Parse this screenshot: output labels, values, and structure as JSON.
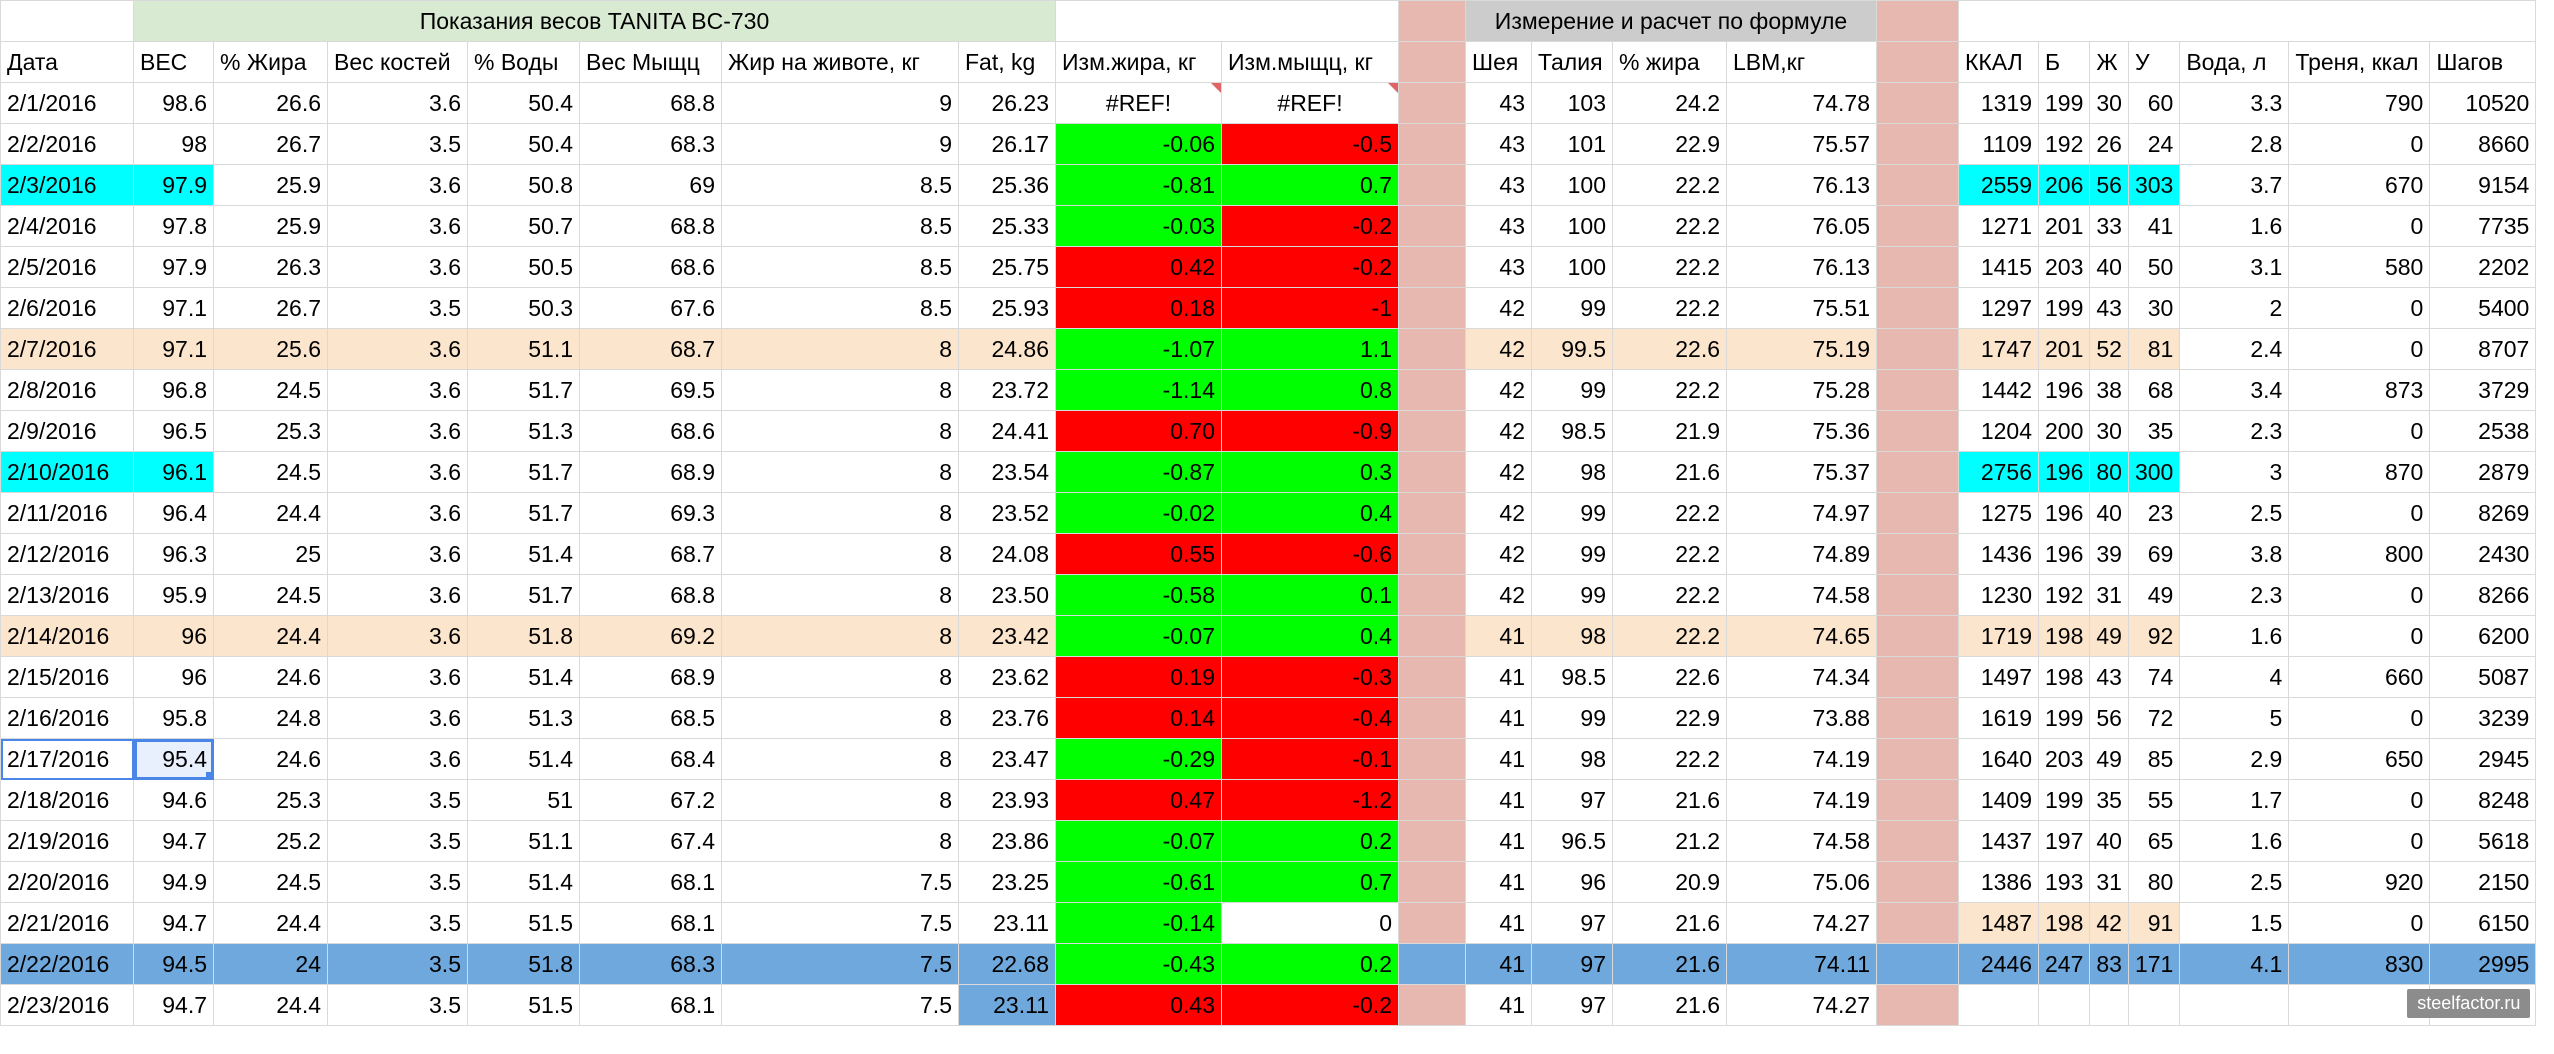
{
  "colors": {
    "header_green": "#d9ead3",
    "header_gray": "#cccccc",
    "separator_pink": "#e6b8af",
    "cyan": "#00ffff",
    "peach": "#fce5cd",
    "green": "#00ff00",
    "red": "#ff0000",
    "blue_row": "#6fa8dc",
    "white": "#ffffff"
  },
  "banner": {
    "tanita": "Показания весов TANITA BC-730",
    "formula": "Измерение и расчет по формуле"
  },
  "headers": [
    "Дата",
    "ВЕС",
    "% Жира",
    "Вес костей",
    "% Воды",
    "Вес Мыщц",
    "Жир на животе, кг",
    "Fat, kg",
    "Изм.жира, кг",
    "Изм.мыщц, кг",
    "",
    "Шея",
    "Талия",
    "% жира",
    "LBM,кг",
    "",
    "ККАЛ",
    "Б",
    "Ж",
    "У",
    "Вода, л",
    "Треня, ккал",
    "Шагов"
  ],
  "rows": [
    {
      "highlight": "none",
      "cells": [
        "2/1/2016",
        "98.6",
        "26.6",
        "3.6",
        "50.4",
        "68.8",
        "9",
        "26.23",
        "#REF!",
        "#REF!",
        "",
        "43",
        "103",
        "24.2",
        "74.78",
        "",
        "1319",
        "199",
        "30",
        "60",
        "3.3",
        "790",
        "10520"
      ]
    },
    {
      "highlight": "none",
      "cells": [
        "2/2/2016",
        "98",
        "26.7",
        "3.5",
        "50.4",
        "68.3",
        "9",
        "26.17",
        "-0.06",
        "-0.5",
        "",
        "43",
        "101",
        "22.9",
        "75.57",
        "",
        "1109",
        "192",
        "26",
        "24",
        "2.8",
        "0",
        "8660"
      ]
    },
    {
      "highlight": "cyan",
      "cells": [
        "2/3/2016",
        "97.9",
        "25.9",
        "3.6",
        "50.8",
        "69",
        "8.5",
        "25.36",
        "-0.81",
        "0.7",
        "",
        "43",
        "100",
        "22.2",
        "76.13",
        "",
        "2559",
        "206",
        "56",
        "303",
        "3.7",
        "670",
        "9154"
      ]
    },
    {
      "highlight": "none",
      "cells": [
        "2/4/2016",
        "97.8",
        "25.9",
        "3.6",
        "50.7",
        "68.8",
        "8.5",
        "25.33",
        "-0.03",
        "-0.2",
        "",
        "43",
        "100",
        "22.2",
        "76.05",
        "",
        "1271",
        "201",
        "33",
        "41",
        "1.6",
        "0",
        "7735"
      ]
    },
    {
      "highlight": "none",
      "cells": [
        "2/5/2016",
        "97.9",
        "26.3",
        "3.6",
        "50.5",
        "68.6",
        "8.5",
        "25.75",
        "0.42",
        "-0.2",
        "",
        "43",
        "100",
        "22.2",
        "76.13",
        "",
        "1415",
        "203",
        "40",
        "50",
        "3.1",
        "580",
        "2202"
      ]
    },
    {
      "highlight": "none",
      "cells": [
        "2/6/2016",
        "97.1",
        "26.7",
        "3.5",
        "50.3",
        "67.6",
        "8.5",
        "25.93",
        "0.18",
        "-1",
        "",
        "42",
        "99",
        "22.2",
        "75.51",
        "",
        "1297",
        "199",
        "43",
        "30",
        "2",
        "0",
        "5400"
      ]
    },
    {
      "highlight": "peach",
      "cells": [
        "2/7/2016",
        "97.1",
        "25.6",
        "3.6",
        "51.1",
        "68.7",
        "8",
        "24.86",
        "-1.07",
        "1.1",
        "",
        "42",
        "99.5",
        "22.6",
        "75.19",
        "",
        "1747",
        "201",
        "52",
        "81",
        "2.4",
        "0",
        "8707"
      ]
    },
    {
      "highlight": "none",
      "cells": [
        "2/8/2016",
        "96.8",
        "24.5",
        "3.6",
        "51.7",
        "69.5",
        "8",
        "23.72",
        "-1.14",
        "0.8",
        "",
        "42",
        "99",
        "22.2",
        "75.28",
        "",
        "1442",
        "196",
        "38",
        "68",
        "3.4",
        "873",
        "3729"
      ]
    },
    {
      "highlight": "none",
      "cells": [
        "2/9/2016",
        "96.5",
        "25.3",
        "3.6",
        "51.3",
        "68.6",
        "8",
        "24.41",
        "0.70",
        "-0.9",
        "",
        "42",
        "98.5",
        "21.9",
        "75.36",
        "",
        "1204",
        "200",
        "30",
        "35",
        "2.3",
        "0",
        "2538"
      ]
    },
    {
      "highlight": "cyan",
      "cells": [
        "2/10/2016",
        "96.1",
        "24.5",
        "3.6",
        "51.7",
        "68.9",
        "8",
        "23.54",
        "-0.87",
        "0.3",
        "",
        "42",
        "98",
        "21.6",
        "75.37",
        "",
        "2756",
        "196",
        "80",
        "300",
        "3",
        "870",
        "2879"
      ]
    },
    {
      "highlight": "none",
      "cells": [
        "2/11/2016",
        "96.4",
        "24.4",
        "3.6",
        "51.7",
        "69.3",
        "8",
        "23.52",
        "-0.02",
        "0.4",
        "",
        "42",
        "99",
        "22.2",
        "74.97",
        "",
        "1275",
        "196",
        "40",
        "23",
        "2.5",
        "0",
        "8269"
      ]
    },
    {
      "highlight": "none",
      "cells": [
        "2/12/2016",
        "96.3",
        "25",
        "3.6",
        "51.4",
        "68.7",
        "8",
        "24.08",
        "0.55",
        "-0.6",
        "",
        "42",
        "99",
        "22.2",
        "74.89",
        "",
        "1436",
        "196",
        "39",
        "69",
        "3.8",
        "800",
        "2430"
      ]
    },
    {
      "highlight": "none",
      "cells": [
        "2/13/2016",
        "95.9",
        "24.5",
        "3.6",
        "51.7",
        "68.8",
        "8",
        "23.50",
        "-0.58",
        "0.1",
        "",
        "42",
        "99",
        "22.2",
        "74.58",
        "",
        "1230",
        "192",
        "31",
        "49",
        "2.3",
        "0",
        "8266"
      ]
    },
    {
      "highlight": "peach",
      "cells": [
        "2/14/2016",
        "96",
        "24.4",
        "3.6",
        "51.8",
        "69.2",
        "8",
        "23.42",
        "-0.07",
        "0.4",
        "",
        "41",
        "98",
        "22.2",
        "74.65",
        "",
        "1719",
        "198",
        "49",
        "92",
        "1.6",
        "0",
        "6200"
      ]
    },
    {
      "highlight": "none",
      "cells": [
        "2/15/2016",
        "96",
        "24.6",
        "3.6",
        "51.4",
        "68.9",
        "8",
        "23.62",
        "0.19",
        "-0.3",
        "",
        "41",
        "98.5",
        "22.6",
        "74.34",
        "",
        "1497",
        "198",
        "43",
        "74",
        "4",
        "660",
        "5087"
      ]
    },
    {
      "highlight": "none",
      "cells": [
        "2/16/2016",
        "95.8",
        "24.8",
        "3.6",
        "51.3",
        "68.5",
        "8",
        "23.76",
        "0.14",
        "-0.4",
        "",
        "41",
        "99",
        "22.9",
        "73.88",
        "",
        "1619",
        "199",
        "56",
        "72",
        "5",
        "0",
        "3239"
      ]
    },
    {
      "highlight": "selected",
      "cells": [
        "2/17/2016",
        "95.4",
        "24.6",
        "3.6",
        "51.4",
        "68.4",
        "8",
        "23.47",
        "-0.29",
        "-0.1",
        "",
        "41",
        "98",
        "22.2",
        "74.19",
        "",
        "1640",
        "203",
        "49",
        "85",
        "2.9",
        "650",
        "2945"
      ]
    },
    {
      "highlight": "none",
      "cells": [
        "2/18/2016",
        "94.6",
        "25.3",
        "3.5",
        "51",
        "67.2",
        "8",
        "23.93",
        "0.47",
        "-1.2",
        "",
        "41",
        "97",
        "21.6",
        "74.19",
        "",
        "1409",
        "199",
        "35",
        "55",
        "1.7",
        "0",
        "8248"
      ]
    },
    {
      "highlight": "none",
      "cells": [
        "2/19/2016",
        "94.7",
        "25.2",
        "3.5",
        "51.1",
        "67.4",
        "8",
        "23.86",
        "-0.07",
        "0.2",
        "",
        "41",
        "96.5",
        "21.2",
        "74.58",
        "",
        "1437",
        "197",
        "40",
        "65",
        "1.6",
        "0",
        "5618"
      ]
    },
    {
      "highlight": "none",
      "cells": [
        "2/20/2016",
        "94.9",
        "24.5",
        "3.5",
        "51.4",
        "68.1",
        "7.5",
        "23.25",
        "-0.61",
        "0.7",
        "",
        "41",
        "96",
        "20.9",
        "75.06",
        "",
        "1386",
        "193",
        "31",
        "80",
        "2.5",
        "920",
        "2150"
      ]
    },
    {
      "highlight": "kcal-peach",
      "cells": [
        "2/21/2016",
        "94.7",
        "24.4",
        "3.5",
        "51.5",
        "68.1",
        "7.5",
        "23.11",
        "-0.14",
        "0",
        "",
        "41",
        "97",
        "21.6",
        "74.27",
        "",
        "1487",
        "198",
        "42",
        "91",
        "1.5",
        "0",
        "6150"
      ]
    },
    {
      "highlight": "blue",
      "cells": [
        "2/22/2016",
        "94.5",
        "24",
        "3.5",
        "51.8",
        "68.3",
        "7.5",
        "22.68",
        "-0.43",
        "0.2",
        "",
        "41",
        "97",
        "21.6",
        "74.11",
        "",
        "2446",
        "247",
        "83",
        "171",
        "4.1",
        "830",
        "2995"
      ]
    },
    {
      "highlight": "last",
      "cells": [
        "2/23/2016",
        "94.7",
        "24.4",
        "3.5",
        "51.5",
        "68.1",
        "7.5",
        "23.11",
        "0.43",
        "-0.2",
        "",
        "41",
        "97",
        "21.6",
        "74.27",
        "",
        "",
        "",
        "",
        "",
        "",
        "",
        ""
      ]
    }
  ],
  "watermark": "steelfactor.ru"
}
